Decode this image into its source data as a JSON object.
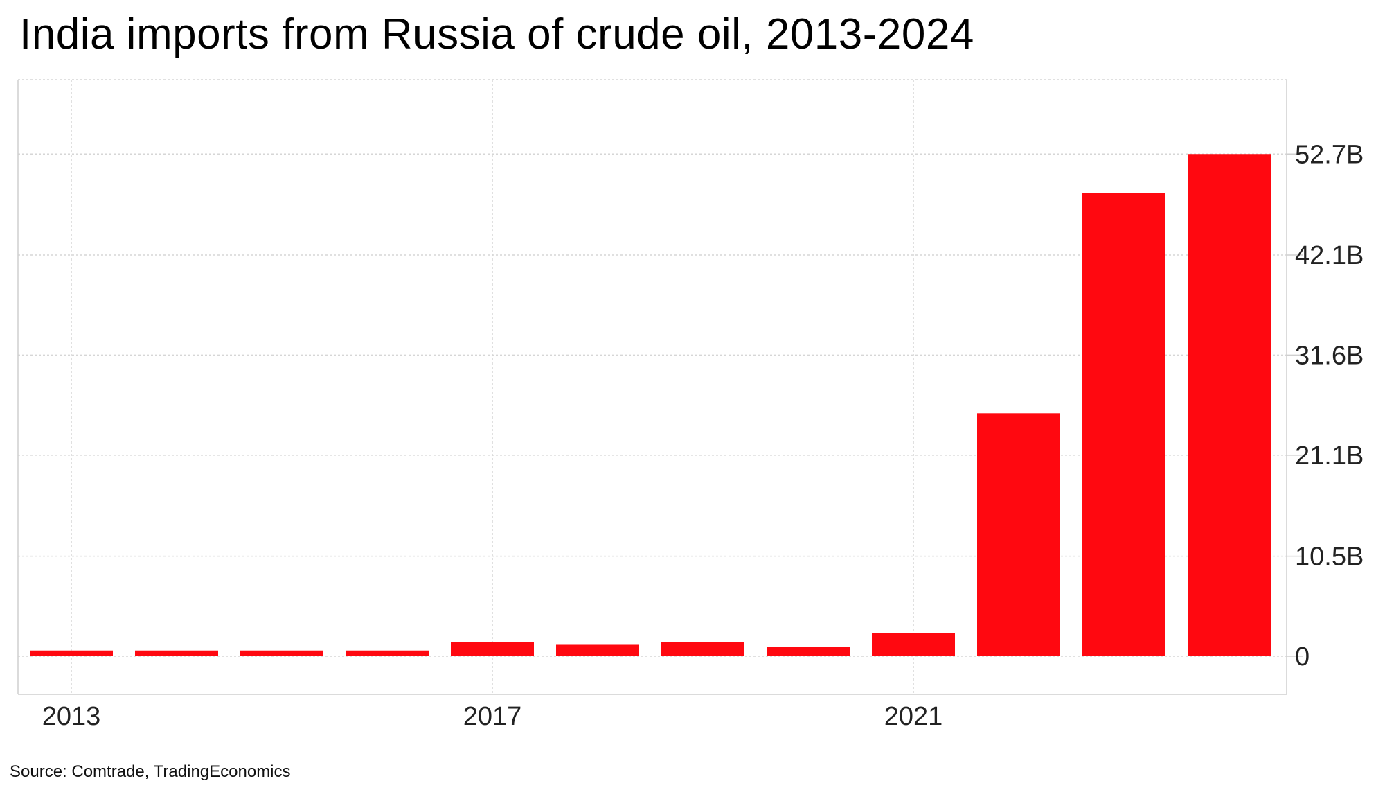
{
  "title": "India imports from Russia of crude oil, 2013-2024",
  "source": "Source: Comtrade, TradingEconomics",
  "colors": {
    "bar": "#ff0810",
    "grid": "#d6d6d6",
    "frame": "#cfcfcf"
  },
  "chart_data": {
    "type": "bar",
    "categories": [
      "2013",
      "2014",
      "2015",
      "2016",
      "2017",
      "2018",
      "2019",
      "2020",
      "2021",
      "2022",
      "2023",
      "2024"
    ],
    "values": [
      0.6,
      0.6,
      0.6,
      0.6,
      1.5,
      1.2,
      1.5,
      1.0,
      2.4,
      25.5,
      48.6,
      52.7
    ],
    "unit": "B",
    "x_tick_labels": [
      "2013",
      "2017",
      "2021"
    ],
    "y_tick_values": [
      0,
      10.5,
      21.1,
      31.6,
      42.1,
      52.7
    ],
    "y_tick_labels": [
      "0",
      "10.5B",
      "21.1B",
      "31.6B",
      "42.1B",
      "52.7B"
    ],
    "ylim": [
      -4,
      56.5
    ],
    "y_axis_side": "right",
    "grid": true,
    "legend": "none",
    "title": "India imports from Russia of crude oil, 2013-2024",
    "xlabel": "",
    "ylabel": ""
  }
}
